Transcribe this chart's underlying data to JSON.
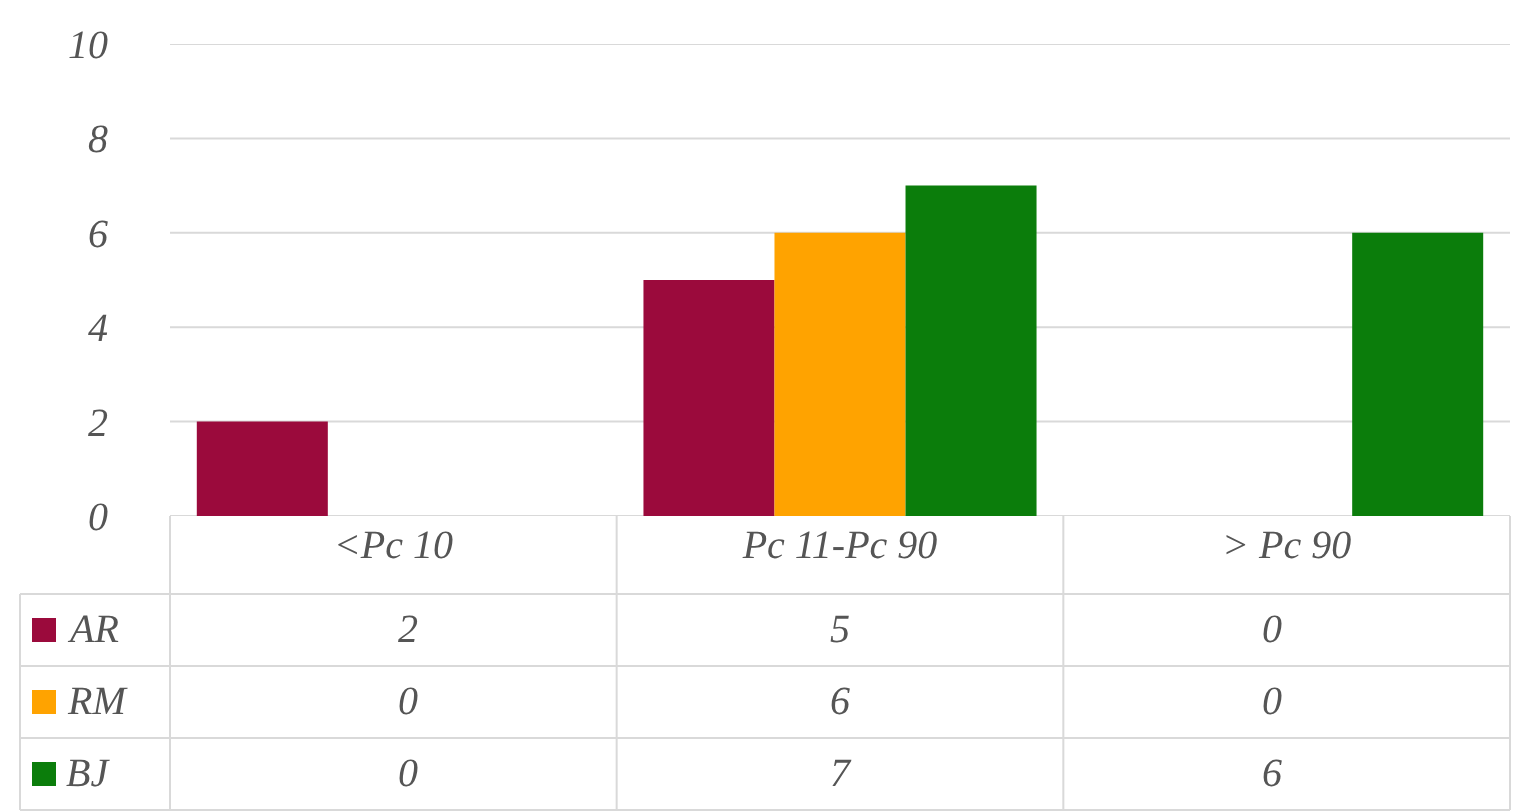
{
  "chart_data": {
    "type": "bar",
    "categories": [
      "<Pc 10",
      "Pc 11-Pc 90",
      "> Pc 90"
    ],
    "series": [
      {
        "name": "AR",
        "color": "#9b0a3c",
        "values": [
          2,
          5,
          0
        ]
      },
      {
        "name": "RM",
        "color": "#ffa300",
        "values": [
          0,
          6,
          0
        ]
      },
      {
        "name": "BJ",
        "color": "#0b7d0b",
        "values": [
          0,
          7,
          6
        ]
      }
    ],
    "ylim": [
      0,
      10
    ],
    "yticks": [
      0,
      2,
      4,
      6,
      8,
      10
    ],
    "grid": "y",
    "data_labels": true,
    "legend": "bottom"
  }
}
